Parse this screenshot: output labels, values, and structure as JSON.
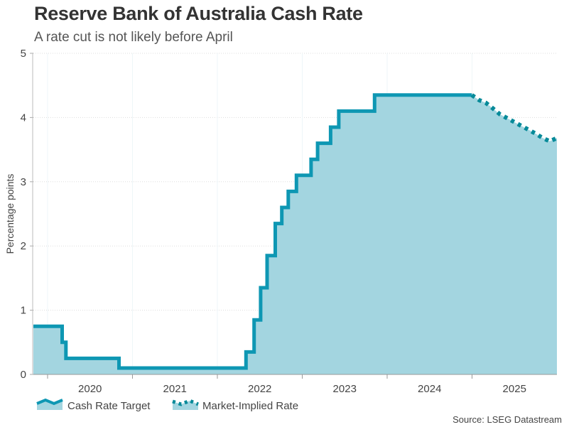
{
  "chart_data": {
    "type": "area",
    "title": "Reserve Bank of Australia Cash Rate",
    "subtitle": "A rate cut is not likely before April",
    "ylabel": "Percentage points",
    "xlabel": "",
    "source": "Source: LSEG Datastream",
    "xlim": [
      "2019-11-01",
      "2026-01-01"
    ],
    "ylim": [
      0,
      5
    ],
    "yticks": [
      "0",
      "1",
      "2",
      "3",
      "4",
      "5"
    ],
    "xticks": [
      "2020",
      "2021",
      "2022",
      "2023",
      "2024",
      "2025"
    ],
    "grid": true,
    "legend_placement": "bottom-left",
    "colors": {
      "line": "#0e97b3",
      "implied": "#078a99",
      "fill": "#a3d5e0"
    },
    "series": [
      {
        "name": "Cash Rate Target",
        "style": "solid step",
        "points": [
          [
            "2019-11-01",
            0.75
          ],
          [
            "2020-03-04",
            0.5
          ],
          [
            "2020-03-20",
            0.25
          ],
          [
            "2020-11-04",
            0.1
          ],
          [
            "2022-05-04",
            0.35
          ],
          [
            "2022-06-08",
            0.85
          ],
          [
            "2022-07-06",
            1.35
          ],
          [
            "2022-08-03",
            1.85
          ],
          [
            "2022-09-07",
            2.35
          ],
          [
            "2022-10-05",
            2.6
          ],
          [
            "2022-11-02",
            2.85
          ],
          [
            "2022-12-07",
            3.1
          ],
          [
            "2023-02-08",
            3.35
          ],
          [
            "2023-03-08",
            3.6
          ],
          [
            "2023-05-03",
            3.85
          ],
          [
            "2023-06-07",
            4.1
          ],
          [
            "2023-11-08",
            4.35
          ],
          [
            "2024-12-31",
            4.35
          ]
        ]
      },
      {
        "name": "Market-Implied Rate",
        "style": "dotted",
        "points": [
          [
            "2024-12-31",
            4.35
          ],
          [
            "2025-02-01",
            4.27
          ],
          [
            "2025-03-01",
            4.23
          ],
          [
            "2025-04-01",
            4.14
          ],
          [
            "2025-05-01",
            4.05
          ],
          [
            "2025-06-01",
            3.99
          ],
          [
            "2025-07-01",
            3.93
          ],
          [
            "2025-08-01",
            3.87
          ],
          [
            "2025-09-01",
            3.81
          ],
          [
            "2025-10-01",
            3.75
          ],
          [
            "2025-11-01",
            3.68
          ],
          [
            "2025-12-01",
            3.63
          ],
          [
            "2026-01-01",
            3.68
          ]
        ]
      }
    ]
  }
}
